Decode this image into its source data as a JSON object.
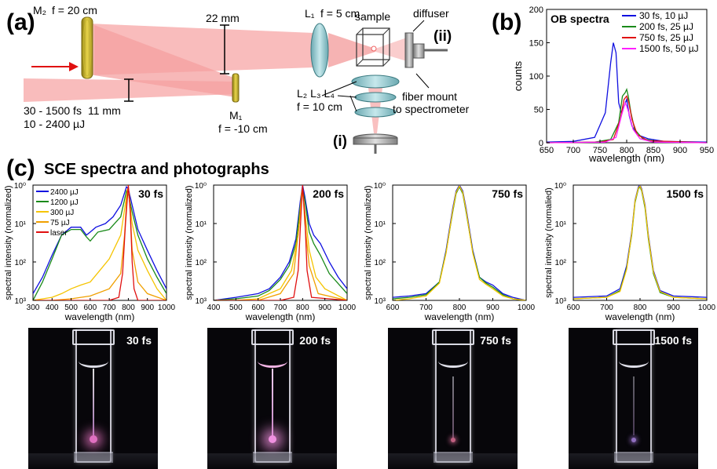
{
  "panel_a": {
    "tag": "(a)",
    "m2": "M₂",
    "m2_f": "f = 20 cm",
    "dist_22": "22 mm",
    "dist_11": "11 mm",
    "pulse_range": "30 - 1500 fs",
    "energy_range": "10 - 2400 µJ",
    "m1": "M₁",
    "m1_f": "f = -10 cm",
    "l1": "L₁",
    "l1_f": "f = 5 cm",
    "sample": "sample",
    "diffuser": "diffuser",
    "ii": "(ii)",
    "i": "(i)",
    "l234": "L₂  L₃  L₄",
    "l_f": "f = 10 cm",
    "fiber_mount": "fiber mount",
    "to_spectrometer": "to spectrometer"
  },
  "panel_b": {
    "tag": "(b)",
    "inner_title": "OB spectra",
    "ylabel": "counts",
    "xlabel": "wavelength (nm)",
    "legend": [
      "30 fs, 10 µJ",
      "200 fs, 25 µJ",
      "750 fs, 25 µJ",
      "1500 fs, 50 µJ"
    ],
    "xticks": [
      "650",
      "700",
      "750",
      "800",
      "850",
      "900",
      "950"
    ],
    "yticks": [
      "0",
      "50",
      "100",
      "150",
      "200"
    ]
  },
  "panel_c": {
    "tag": "(c)",
    "title": "SCE spectra and photographs",
    "xlabel": "wavelength (nm)",
    "ylabel": "spectral intensity (normalized)",
    "ylabel_alt": "spectral intensity (normalied)",
    "legend": [
      "2400 µJ",
      "1200 µJ",
      "300 µJ",
      "75 µJ",
      "laser"
    ],
    "plots": [
      {
        "label": "30 fs",
        "xticks": [
          "300",
          "400",
          "500",
          "600",
          "700",
          "800",
          "900",
          "1000"
        ]
      },
      {
        "label": "200 fs",
        "xticks": [
          "400",
          "500",
          "600",
          "700",
          "800",
          "900",
          "1000"
        ]
      },
      {
        "label": "750 fs",
        "xticks": [
          "600",
          "700",
          "800",
          "900",
          "1000"
        ]
      },
      {
        "label": "1500 fs",
        "xticks": [
          "600",
          "700",
          "800",
          "900",
          "1000"
        ]
      }
    ],
    "yticks": [
      "10³",
      "10²",
      "10¹",
      "10⁰"
    ],
    "photos": [
      "30 fs",
      "200 fs",
      "750 fs",
      "1500 fs"
    ]
  },
  "chart_data": [
    {
      "type": "line",
      "title": "OB spectra",
      "xlabel": "wavelength (nm)",
      "ylabel": "counts",
      "xlim": [
        650,
        950
      ],
      "ylim": [
        0,
        200
      ],
      "colors": [
        "#1010e0",
        "#1a8a1a",
        "#e01010",
        "#ff20ff"
      ],
      "series": [
        {
          "name": "30 fs, 10 µJ",
          "x": [
            650,
            700,
            740,
            760,
            770,
            775,
            780,
            785,
            790,
            795,
            800,
            805,
            810,
            820,
            840,
            870,
            950
          ],
          "y": [
            1,
            2,
            8,
            45,
            120,
            150,
            135,
            60,
            45,
            55,
            65,
            40,
            25,
            12,
            6,
            2,
            1
          ]
        },
        {
          "name": "200 fs, 25 µJ",
          "x": [
            650,
            740,
            770,
            785,
            792,
            797,
            800,
            803,
            808,
            815,
            830,
            860,
            950
          ],
          "y": [
            0,
            1,
            5,
            30,
            70,
            75,
            80,
            70,
            45,
            20,
            6,
            1,
            0
          ]
        },
        {
          "name": "750 fs, 25 µJ",
          "x": [
            650,
            750,
            775,
            788,
            795,
            800,
            804,
            810,
            820,
            840,
            950
          ],
          "y": [
            0,
            1,
            5,
            35,
            65,
            70,
            60,
            35,
            12,
            3,
            0
          ]
        },
        {
          "name": "1500 fs, 50 µJ",
          "x": [
            650,
            760,
            780,
            790,
            797,
            800,
            804,
            812,
            825,
            850,
            950
          ],
          "y": [
            0,
            1,
            8,
            40,
            60,
            55,
            45,
            20,
            6,
            1,
            0
          ]
        }
      ]
    },
    {
      "type": "line",
      "title": "30 fs",
      "xlabel": "wavelength (nm)",
      "ylabel": "spectral intensity (normalized)",
      "xlim": [
        300,
        1000
      ],
      "ylim": [
        0.001,
        1
      ],
      "yscale": "log",
      "series": [
        {
          "name": "2400 µJ",
          "x": [
            300,
            350,
            400,
            450,
            500,
            550,
            580,
            600,
            630,
            680,
            720,
            760,
            790,
            800,
            820,
            850,
            900,
            950,
            1000
          ],
          "y": [
            0.0015,
            0.004,
            0.015,
            0.05,
            0.08,
            0.08,
            0.05,
            0.06,
            0.08,
            0.1,
            0.15,
            0.3,
            0.9,
            0.8,
            0.3,
            0.07,
            0.02,
            0.006,
            0.002
          ]
        },
        {
          "name": "1200 µJ",
          "x": [
            300,
            350,
            400,
            450,
            500,
            550,
            580,
            600,
            640,
            700,
            760,
            790,
            800,
            820,
            850,
            900,
            950,
            1000
          ],
          "y": [
            0.001,
            0.003,
            0.012,
            0.05,
            0.07,
            0.07,
            0.045,
            0.035,
            0.06,
            0.07,
            0.15,
            0.7,
            0.6,
            0.2,
            0.05,
            0.012,
            0.004,
            0.0015
          ]
        },
        {
          "name": "300 µJ",
          "x": [
            300,
            400,
            450,
            500,
            550,
            600,
            650,
            700,
            760,
            790,
            800,
            820,
            850,
            900,
            950,
            1000
          ],
          "y": [
            0.001,
            0.0012,
            0.0015,
            0.002,
            0.0025,
            0.003,
            0.006,
            0.012,
            0.05,
            0.5,
            0.7,
            0.1,
            0.02,
            0.006,
            0.002,
            0.001
          ]
        },
        {
          "name": "75 µJ",
          "x": [
            300,
            400,
            500,
            600,
            700,
            760,
            780,
            795,
            805,
            820,
            850,
            900,
            1000
          ],
          "y": [
            0.001,
            0.001,
            0.0011,
            0.0013,
            0.002,
            0.005,
            0.05,
            0.8,
            0.6,
            0.02,
            0.003,
            0.0015,
            0.001
          ]
        },
        {
          "name": "laser",
          "x": [
            300,
            700,
            750,
            770,
            785,
            800,
            810,
            820,
            830,
            850,
            1000
          ],
          "y": [
            0.001,
            0.001,
            0.0012,
            0.005,
            0.1,
            1,
            0.2,
            0.01,
            0.002,
            0.001,
            0.001
          ]
        }
      ]
    },
    {
      "type": "line",
      "title": "200 fs",
      "xlabel": "wavelength (nm)",
      "ylabel": "spectral intensity (normalized)",
      "xlim": [
        400,
        1000
      ],
      "ylim": [
        0.001,
        1
      ],
      "yscale": "log",
      "series": [
        {
          "name": "2400 µJ",
          "x": [
            400,
            500,
            600,
            650,
            700,
            740,
            770,
            790,
            800,
            810,
            830,
            850,
            880,
            920,
            960,
            1000
          ],
          "y": [
            0.001,
            0.0012,
            0.0015,
            0.002,
            0.004,
            0.01,
            0.04,
            0.4,
            1,
            0.5,
            0.1,
            0.05,
            0.03,
            0.01,
            0.004,
            0.002
          ]
        },
        {
          "name": "1200 µJ",
          "x": [
            400,
            500,
            600,
            650,
            700,
            740,
            770,
            790,
            800,
            810,
            830,
            850,
            880,
            920,
            1000
          ],
          "y": [
            0.001,
            0.0011,
            0.0013,
            0.0018,
            0.0035,
            0.008,
            0.03,
            0.3,
            0.8,
            0.4,
            0.06,
            0.03,
            0.015,
            0.005,
            0.0015
          ]
        },
        {
          "name": "300 µJ",
          "x": [
            400,
            500,
            600,
            650,
            700,
            750,
            780,
            795,
            800,
            810,
            830,
            860,
            900,
            1000
          ],
          "y": [
            0.001,
            0.001,
            0.0011,
            0.0015,
            0.002,
            0.006,
            0.05,
            0.4,
            0.7,
            0.2,
            0.02,
            0.004,
            0.002,
            0.001
          ]
        },
        {
          "name": "75 µJ",
          "x": [
            400,
            500,
            600,
            700,
            760,
            785,
            795,
            800,
            810,
            830,
            870,
            1000
          ],
          "y": [
            0.001,
            0.001,
            0.001,
            0.0015,
            0.005,
            0.1,
            0.6,
            0.9,
            0.1,
            0.008,
            0.0015,
            0.001
          ]
        },
        {
          "name": "laser",
          "x": [
            400,
            700,
            760,
            780,
            795,
            800,
            810,
            820,
            840,
            1000
          ],
          "y": [
            0.001,
            0.001,
            0.0012,
            0.006,
            0.3,
            1,
            0.15,
            0.006,
            0.0012,
            0.001
          ]
        }
      ]
    },
    {
      "type": "line",
      "title": "750 fs",
      "xlabel": "wavelength (nm)",
      "ylabel": "spectral intensity (normalized)",
      "xlim": [
        600,
        1000
      ],
      "ylim": [
        0.001,
        1
      ],
      "yscale": "log",
      "series": [
        {
          "name": "2400 µJ",
          "x": [
            600,
            650,
            700,
            740,
            760,
            780,
            790,
            800,
            810,
            820,
            840,
            860,
            880,
            900,
            930,
            960,
            1000
          ],
          "y": [
            0.0012,
            0.0013,
            0.0015,
            0.003,
            0.02,
            0.25,
            0.7,
            1,
            0.7,
            0.25,
            0.02,
            0.004,
            0.003,
            0.0025,
            0.0015,
            0.0012,
            0.001
          ]
        },
        {
          "name": "1200 µJ",
          "x": [
            600,
            650,
            700,
            740,
            760,
            780,
            790,
            800,
            810,
            820,
            840,
            860,
            880,
            900,
            930,
            960,
            1000
          ],
          "y": [
            0.0011,
            0.0012,
            0.0014,
            0.003,
            0.018,
            0.2,
            0.6,
            0.9,
            0.6,
            0.2,
            0.018,
            0.004,
            0.0028,
            0.0022,
            0.0014,
            0.0011,
            0.001
          ]
        },
        {
          "name": "300 µJ",
          "x": [
            600,
            650,
            700,
            740,
            760,
            780,
            790,
            800,
            810,
            820,
            840,
            860,
            880,
            900,
            930,
            960,
            1000
          ],
          "y": [
            0.001,
            0.0011,
            0.0013,
            0.0028,
            0.017,
            0.22,
            0.65,
            0.95,
            0.65,
            0.22,
            0.017,
            0.0035,
            0.0026,
            0.002,
            0.0013,
            0.0011,
            0.001
          ]
        }
      ]
    },
    {
      "type": "line",
      "title": "1500 fs",
      "xlabel": "wavelength (nm)",
      "ylabel": "spectral intensity (normalied)",
      "xlim": [
        600,
        1000
      ],
      "ylim": [
        0.001,
        1
      ],
      "yscale": "log",
      "series": [
        {
          "name": "2400 µJ",
          "x": [
            600,
            700,
            740,
            760,
            775,
            785,
            795,
            800,
            805,
            815,
            825,
            840,
            860,
            900,
            1000
          ],
          "y": [
            0.0012,
            0.0013,
            0.002,
            0.008,
            0.06,
            0.4,
            0.9,
            1,
            0.8,
            0.3,
            0.05,
            0.006,
            0.0018,
            0.0013,
            0.0012
          ]
        },
        {
          "name": "1200 µJ",
          "x": [
            600,
            700,
            740,
            760,
            775,
            785,
            795,
            800,
            805,
            815,
            825,
            840,
            860,
            900,
            1000
          ],
          "y": [
            0.0011,
            0.0012,
            0.0018,
            0.007,
            0.05,
            0.35,
            0.8,
            0.9,
            0.7,
            0.25,
            0.04,
            0.005,
            0.0016,
            0.0012,
            0.0011
          ]
        },
        {
          "name": "300 µJ",
          "x": [
            600,
            700,
            740,
            760,
            775,
            785,
            795,
            800,
            805,
            815,
            825,
            840,
            860,
            900,
            1000
          ],
          "y": [
            0.0011,
            0.0012,
            0.0017,
            0.0065,
            0.055,
            0.38,
            0.85,
            0.95,
            0.75,
            0.28,
            0.045,
            0.0055,
            0.0017,
            0.0012,
            0.0011
          ]
        }
      ]
    }
  ]
}
